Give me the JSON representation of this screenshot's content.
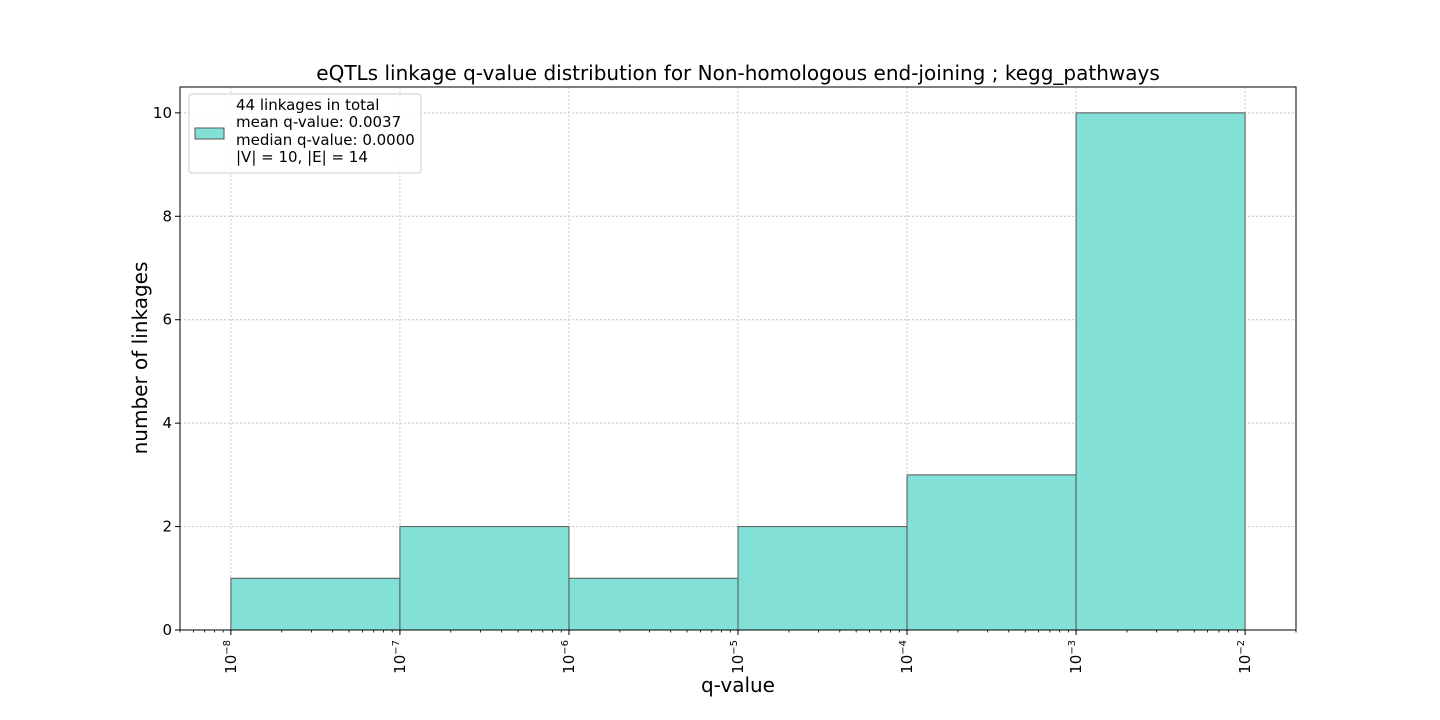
{
  "chart_data": {
    "type": "bar",
    "title": "eQTLs linkage q-value distribution for Non-homologous end-joining ; kegg_pathways",
    "xlabel": "q-value",
    "ylabel": "number of linkages",
    "x_scale": "log",
    "bins": [
      {
        "left": 1e-08,
        "right": 1e-07,
        "value": 1
      },
      {
        "left": 1e-07,
        "right": 1e-06,
        "value": 2
      },
      {
        "left": 1e-06,
        "right": 1e-05,
        "value": 1
      },
      {
        "left": 1e-05,
        "right": 0.0001,
        "value": 2
      },
      {
        "left": 0.0001,
        "right": 0.001,
        "value": 3
      },
      {
        "left": 0.001,
        "right": 0.01,
        "value": 10
      }
    ],
    "xlim": [
      5e-09,
      0.02
    ],
    "ylim": [
      0,
      10.5
    ],
    "x_ticks": [
      {
        "value": 1e-08,
        "base": "10",
        "exp": "−8"
      },
      {
        "value": 1e-07,
        "base": "10",
        "exp": "−7"
      },
      {
        "value": 1e-06,
        "base": "10",
        "exp": "−6"
      },
      {
        "value": 1e-05,
        "base": "10",
        "exp": "−5"
      },
      {
        "value": 0.0001,
        "base": "10",
        "exp": "−4"
      },
      {
        "value": 0.001,
        "base": "10",
        "exp": "−3"
      },
      {
        "value": 0.01,
        "base": "10",
        "exp": "−2"
      }
    ],
    "y_ticks": [
      0,
      2,
      4,
      6,
      8,
      10
    ],
    "grid": true,
    "legend": {
      "placement": "upper-left",
      "lines": [
        "44 linkages in total",
        "mean q-value: 0.0037",
        "median q-value: 0.0000",
        "|V| = 10, |E| = 14"
      ]
    },
    "colors": {
      "bar_fill": "#83e0d6",
      "bar_edge": "#555555",
      "grid": "#c8c8c8"
    }
  }
}
